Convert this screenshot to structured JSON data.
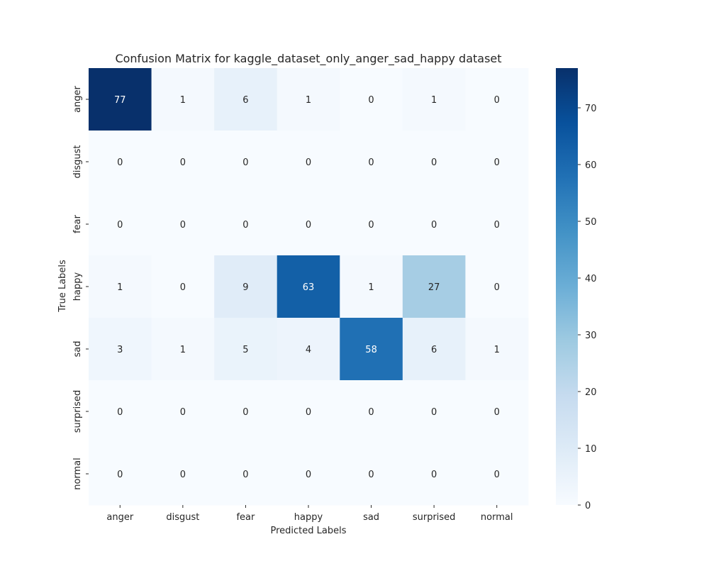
{
  "chart_data": {
    "type": "heatmap",
    "title": "Confusion Matrix for kaggle_dataset_only_anger_sad_happy dataset",
    "xlabel": "Predicted Labels",
    "ylabel": "True Labels",
    "x_categories": [
      "anger",
      "disgust",
      "fear",
      "happy",
      "sad",
      "surprised",
      "normal"
    ],
    "y_categories": [
      "anger",
      "disgust",
      "fear",
      "happy",
      "sad",
      "surprised",
      "normal"
    ],
    "values": [
      [
        77,
        1,
        6,
        1,
        0,
        1,
        0
      ],
      [
        0,
        0,
        0,
        0,
        0,
        0,
        0
      ],
      [
        0,
        0,
        0,
        0,
        0,
        0,
        0
      ],
      [
        1,
        0,
        9,
        63,
        1,
        27,
        0
      ],
      [
        3,
        1,
        5,
        4,
        58,
        6,
        1
      ],
      [
        0,
        0,
        0,
        0,
        0,
        0,
        0
      ],
      [
        0,
        0,
        0,
        0,
        0,
        0,
        0
      ]
    ],
    "colormap": "Blues",
    "vmin": 0,
    "vmax": 77,
    "colorbar_ticks": [
      0,
      10,
      20,
      30,
      40,
      50,
      60,
      70
    ],
    "colorbar_tick_labels": [
      "0",
      "10",
      "20",
      "30",
      "40",
      "50",
      "60",
      "70"
    ],
    "annotations": true,
    "grid": false,
    "legend": "colorbar-right"
  }
}
